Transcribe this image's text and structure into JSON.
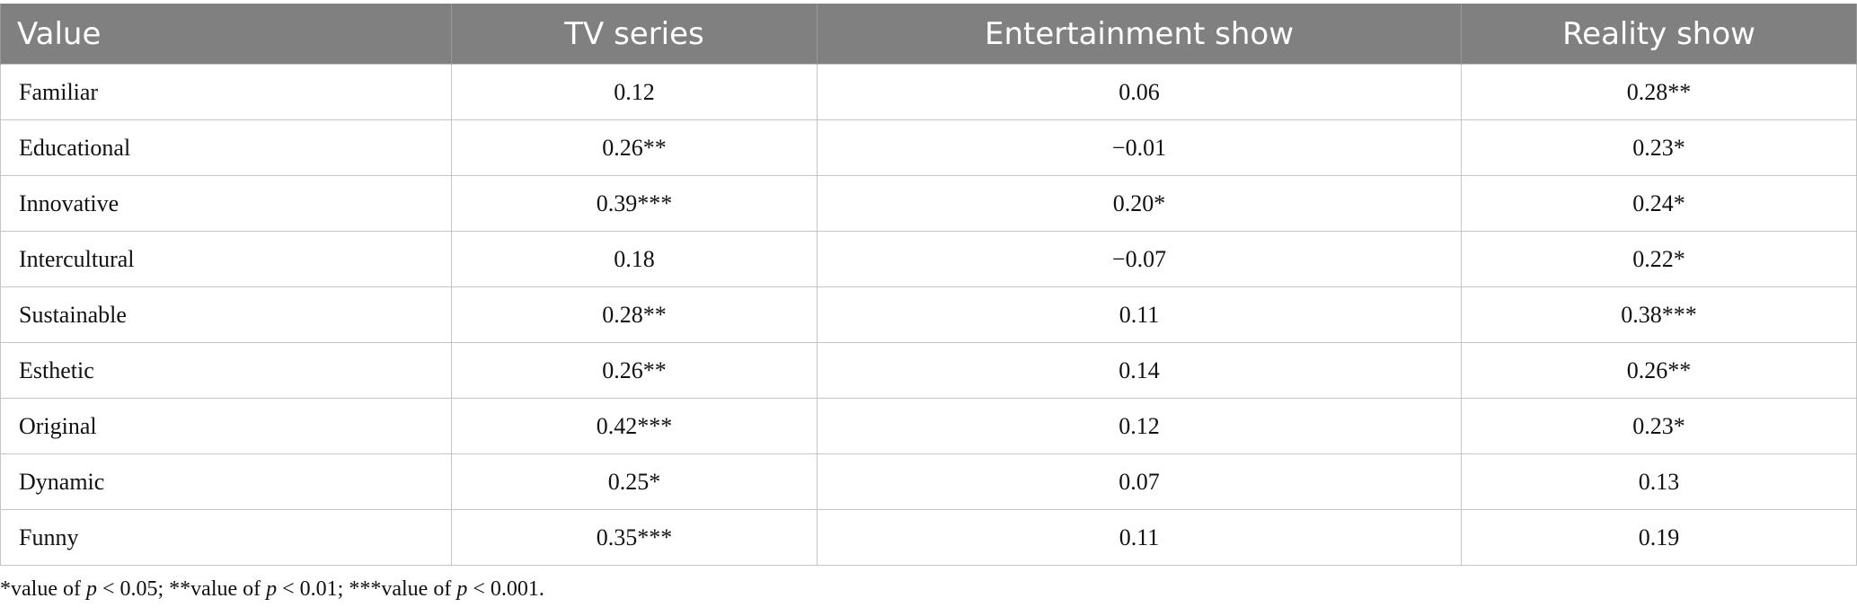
{
  "table": {
    "headers": [
      "Value",
      "TV series",
      "Entertainment show",
      "Reality show"
    ],
    "rows": [
      [
        "Familiar",
        "0.12",
        "0.06",
        "0.28**"
      ],
      [
        "Educational",
        "0.26**",
        "−0.01",
        "0.23*"
      ],
      [
        "Innovative",
        "0.39***",
        "0.20*",
        "0.24*"
      ],
      [
        "Intercultural",
        "0.18",
        "−0.07",
        "0.22*"
      ],
      [
        "Sustainable",
        "0.28**",
        "0.11",
        "0.38***"
      ],
      [
        "Esthetic",
        "0.26**",
        "0.14",
        "0.26**"
      ],
      [
        "Original",
        "0.42***",
        "0.12",
        "0.23*"
      ],
      [
        "Dynamic",
        "0.25*",
        "0.07",
        "0.13"
      ],
      [
        "Funny",
        "0.35***",
        "0.11",
        "0.19"
      ]
    ]
  },
  "footnote": {
    "part1": "*value of ",
    "p1": "p",
    "part2": " < 0.05; **value of ",
    "p2": "p",
    "part3": " < 0.01; ***value of ",
    "p3": "p",
    "part4": " < 0.001."
  }
}
